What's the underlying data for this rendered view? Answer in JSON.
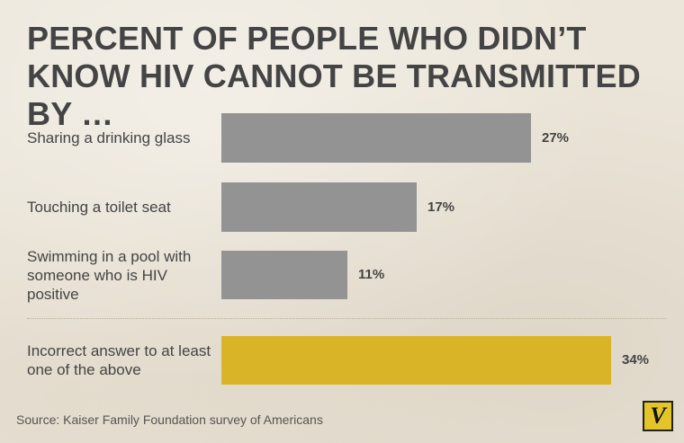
{
  "title": "PERCENT OF PEOPLE WHO DIDN’T KNOW HIV CANNOT BE TRANSMITTED BY …",
  "source": "Source: Kaiser Family Foundation survey of Americans",
  "logo": {
    "letter": "V",
    "icon": "vox-logo"
  },
  "colors": {
    "default_bar": "#939393",
    "highlight_bar": "#d8b426",
    "background": "#ece6da"
  },
  "chart_data": {
    "type": "bar",
    "orientation": "horizontal",
    "categories": [
      "Sharing a drinking glass",
      "Touching a toilet seat",
      "Swimming in a pool with someone who is HIV positive",
      "Incorrect answer to at least one of the above"
    ],
    "values": [
      27,
      17,
      11,
      34
    ],
    "value_labels": [
      "27%",
      "17%",
      "11%",
      "34%"
    ],
    "highlight_index": 3,
    "unit": "%",
    "xlim": [
      0,
      34
    ],
    "grid": false,
    "legend": false
  }
}
